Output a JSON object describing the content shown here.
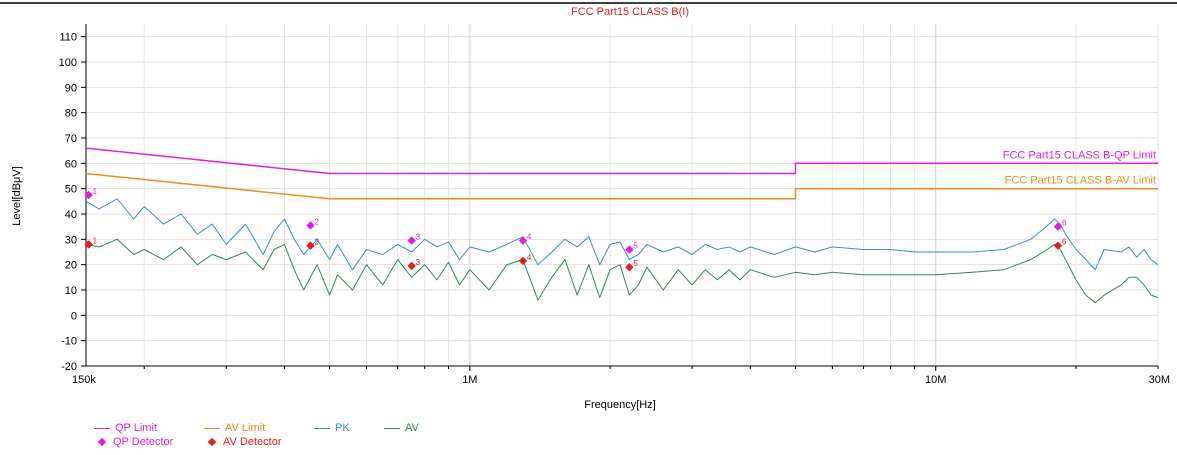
{
  "chart_data": {
    "type": "line",
    "title": "FCC Part15 CLASS B(I)",
    "xlabel": "Frequency[Hz]",
    "ylabel": "Level[dBμV]",
    "xscale": "log",
    "xlim": [
      150000,
      30000000
    ],
    "ylim": [
      -20,
      115
    ],
    "x_ticks": [
      {
        "value": 150000,
        "label": "150k"
      },
      {
        "value": 1000000,
        "label": "1M"
      },
      {
        "value": 10000000,
        "label": "10M"
      },
      {
        "value": 30000000,
        "label": "30M"
      }
    ],
    "y_ticks": [
      -20,
      -10,
      0,
      10,
      20,
      30,
      40,
      50,
      60,
      70,
      80,
      90,
      100,
      110
    ],
    "grid": true,
    "colors": {
      "qp_limit": "#e020e0",
      "av_limit": "#f08a1c",
      "pk": "#3a8fcf",
      "av": "#2e8b57",
      "qp_detector": "#e020e0",
      "av_detector": "#e02020",
      "title": "#e02020"
    },
    "limit_labels": [
      "FCC Part15 CLASS B-QP Limit",
      "FCC Part15 CLASS B-AV Limit"
    ],
    "series": [
      {
        "name": "QP Limit",
        "x": [
          150000,
          500000,
          5000000,
          5000000,
          30000000
        ],
        "y": [
          66,
          56,
          56,
          60,
          60
        ]
      },
      {
        "name": "AV Limit",
        "x": [
          150000,
          500000,
          5000000,
          5000000,
          30000000
        ],
        "y": [
          56,
          46,
          46,
          50,
          50
        ]
      },
      {
        "name": "PK",
        "x": [
          150000,
          160000,
          175000,
          190000,
          200000,
          220000,
          240000,
          260000,
          280000,
          300000,
          330000,
          360000,
          380000,
          400000,
          420000,
          440000,
          470000,
          500000,
          520000,
          560000,
          600000,
          650000,
          700000,
          750000,
          800000,
          850000,
          900000,
          950000,
          1000000,
          1100000,
          1200000,
          1300000,
          1400000,
          1500000,
          1600000,
          1700000,
          1800000,
          1900000,
          2000000,
          2100000,
          2200000,
          2300000,
          2400000,
          2600000,
          2800000,
          3000000,
          3200000,
          3400000,
          3600000,
          3800000,
          4000000,
          4500000,
          5000000,
          5500000,
          6000000,
          7000000,
          8000000,
          9000000,
          10000000,
          12000000,
          14000000,
          16000000,
          17000000,
          18000000,
          18500000,
          19000000,
          20000000,
          21000000,
          22000000,
          23000000,
          25000000,
          26000000,
          27000000,
          28000000,
          29000000,
          30000000
        ],
        "y": [
          45,
          42,
          46,
          38,
          43,
          36,
          40,
          32,
          36,
          28,
          36,
          24,
          33,
          38,
          30,
          24,
          30,
          22,
          28,
          18,
          26,
          24,
          28,
          25,
          30,
          27,
          29,
          22,
          27,
          25,
          28,
          31,
          20,
          25,
          30,
          27,
          31,
          20,
          28,
          29,
          22,
          24,
          28,
          25,
          27,
          24,
          28,
          26,
          27,
          25,
          27,
          24,
          27,
          25,
          27,
          26,
          26,
          25,
          25,
          25,
          26,
          30,
          34,
          38,
          36,
          32,
          26,
          22,
          18,
          26,
          25,
          27,
          23,
          26,
          22,
          20
        ]
      },
      {
        "name": "AV",
        "x": [
          150000,
          160000,
          175000,
          190000,
          200000,
          220000,
          240000,
          260000,
          280000,
          300000,
          330000,
          360000,
          380000,
          400000,
          420000,
          440000,
          470000,
          500000,
          520000,
          560000,
          600000,
          650000,
          700000,
          750000,
          800000,
          850000,
          900000,
          950000,
          1000000,
          1100000,
          1200000,
          1300000,
          1400000,
          1500000,
          1600000,
          1700000,
          1800000,
          1900000,
          2000000,
          2100000,
          2200000,
          2300000,
          2400000,
          2600000,
          2800000,
          3000000,
          3200000,
          3400000,
          3600000,
          3800000,
          4000000,
          4500000,
          5000000,
          5500000,
          6000000,
          7000000,
          8000000,
          9000000,
          10000000,
          12000000,
          14000000,
          16000000,
          17000000,
          18000000,
          18500000,
          19000000,
          20000000,
          21000000,
          22000000,
          23000000,
          25000000,
          26000000,
          27000000,
          28000000,
          29000000,
          30000000
        ],
        "y": [
          28,
          27,
          30,
          24,
          26,
          22,
          27,
          20,
          24,
          22,
          25,
          18,
          26,
          28,
          18,
          10,
          20,
          8,
          16,
          10,
          20,
          12,
          22,
          15,
          20,
          14,
          21,
          12,
          18,
          10,
          20,
          22,
          6,
          15,
          22,
          8,
          20,
          7,
          18,
          20,
          8,
          12,
          19,
          10,
          18,
          12,
          18,
          14,
          18,
          14,
          18,
          15,
          17,
          16,
          17,
          16,
          16,
          16,
          16,
          17,
          18,
          22,
          25,
          28,
          26,
          22,
          14,
          8,
          5,
          8,
          12,
          15,
          15,
          12,
          8,
          7
        ]
      }
    ],
    "markers": {
      "qp": [
        {
          "n": "1",
          "f": 152000,
          "level": 47.5
        },
        {
          "n": "2",
          "f": 455000,
          "level": 35.5
        },
        {
          "n": "3",
          "f": 750000,
          "level": 29.5
        },
        {
          "n": "4",
          "f": 1300000,
          "level": 29.5
        },
        {
          "n": "5",
          "f": 2200000,
          "level": 26
        },
        {
          "n": "6",
          "f": 18300000,
          "level": 35
        }
      ],
      "av": [
        {
          "n": "1",
          "f": 152000,
          "level": 28
        },
        {
          "n": "2",
          "f": 455000,
          "level": 27.5
        },
        {
          "n": "3",
          "f": 750000,
          "level": 19.5
        },
        {
          "n": "4",
          "f": 1300000,
          "level": 21.5
        },
        {
          "n": "5",
          "f": 2200000,
          "level": 19
        },
        {
          "n": "6",
          "f": 18300000,
          "level": 27.5
        }
      ]
    },
    "legend": {
      "position": "bottom-left",
      "items": [
        {
          "label": "QP Limit",
          "kind": "line",
          "color": "#e020e0"
        },
        {
          "label": "AV Limit",
          "kind": "line",
          "color": "#f08a1c"
        },
        {
          "label": "PK",
          "kind": "line",
          "color": "#3a8fcf"
        },
        {
          "label": "AV",
          "kind": "line",
          "color": "#2e8b57"
        },
        {
          "label": "QP Detector",
          "kind": "marker",
          "color": "#e020e0"
        },
        {
          "label": "AV Detector",
          "kind": "marker",
          "color": "#e02020"
        }
      ]
    }
  }
}
